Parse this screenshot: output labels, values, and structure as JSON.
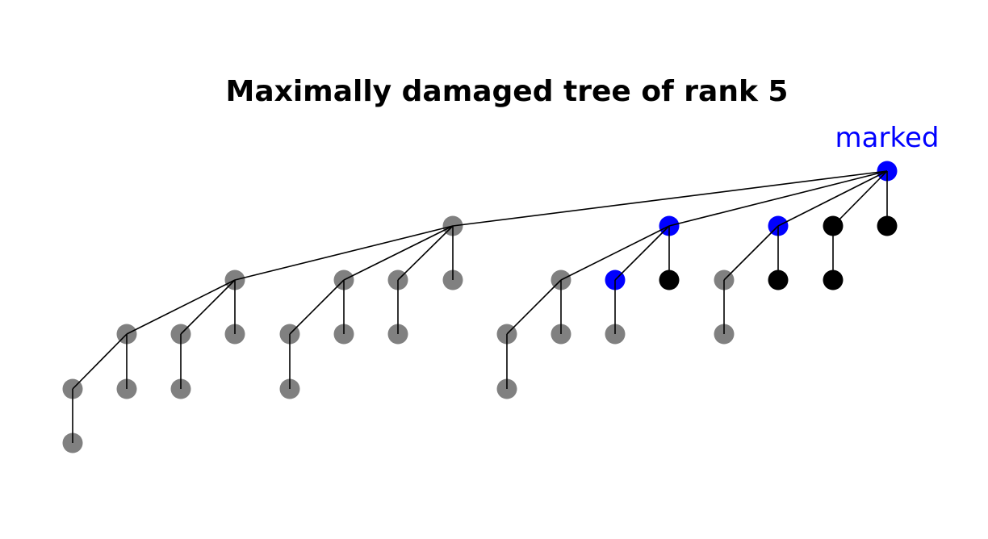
{
  "title": "Maximally damaged tree of rank 5",
  "marked_label": "marked",
  "colors": {
    "gray": "#808080",
    "blue": "#0000ff",
    "black": "#000000",
    "edge": "#000000"
  },
  "nodes": [
    {
      "id": "r",
      "color": "blue"
    },
    {
      "id": "a",
      "color": "gray"
    },
    {
      "id": "b",
      "color": "blue"
    },
    {
      "id": "c",
      "color": "blue"
    },
    {
      "id": "d",
      "color": "black"
    },
    {
      "id": "e",
      "color": "black"
    },
    {
      "id": "a1",
      "color": "gray"
    },
    {
      "id": "a2",
      "color": "gray"
    },
    {
      "id": "a3",
      "color": "gray"
    },
    {
      "id": "a4",
      "color": "gray"
    },
    {
      "id": "b1",
      "color": "gray"
    },
    {
      "id": "b2",
      "color": "blue"
    },
    {
      "id": "b3",
      "color": "black"
    },
    {
      "id": "c1",
      "color": "gray"
    },
    {
      "id": "c2",
      "color": "black"
    },
    {
      "id": "d1",
      "color": "black"
    },
    {
      "id": "a11",
      "color": "gray"
    },
    {
      "id": "a12",
      "color": "gray"
    },
    {
      "id": "a13",
      "color": "gray"
    },
    {
      "id": "a21",
      "color": "gray"
    },
    {
      "id": "a22",
      "color": "gray"
    },
    {
      "id": "a31",
      "color": "gray"
    },
    {
      "id": "b11",
      "color": "gray"
    },
    {
      "id": "b12",
      "color": "gray"
    },
    {
      "id": "b21",
      "color": "gray"
    },
    {
      "id": "c11",
      "color": "gray"
    },
    {
      "id": "a111",
      "color": "gray"
    },
    {
      "id": "a112",
      "color": "gray"
    },
    {
      "id": "a121",
      "color": "gray"
    },
    {
      "id": "a211",
      "color": "gray"
    },
    {
      "id": "b111",
      "color": "gray"
    },
    {
      "id": "a1111",
      "color": "gray"
    }
  ],
  "edges": [
    [
      "r",
      "a"
    ],
    [
      "r",
      "b"
    ],
    [
      "r",
      "c"
    ],
    [
      "r",
      "d"
    ],
    [
      "r",
      "e"
    ],
    [
      "a",
      "a1"
    ],
    [
      "a",
      "a2"
    ],
    [
      "a",
      "a3"
    ],
    [
      "a",
      "a4"
    ],
    [
      "b",
      "b1"
    ],
    [
      "b",
      "b2"
    ],
    [
      "b",
      "b3"
    ],
    [
      "c",
      "c1"
    ],
    [
      "c",
      "c2"
    ],
    [
      "d",
      "d1"
    ],
    [
      "a1",
      "a11"
    ],
    [
      "a1",
      "a12"
    ],
    [
      "a1",
      "a13"
    ],
    [
      "a2",
      "a21"
    ],
    [
      "a2",
      "a22"
    ],
    [
      "a3",
      "a31"
    ],
    [
      "b1",
      "b11"
    ],
    [
      "b1",
      "b12"
    ],
    [
      "b2",
      "b21"
    ],
    [
      "c1",
      "c11"
    ],
    [
      "a11",
      "a111"
    ],
    [
      "a11",
      "a112"
    ],
    [
      "a12",
      "a121"
    ],
    [
      "a21",
      "a211"
    ],
    [
      "b11",
      "b111"
    ],
    [
      "a111",
      "a1111"
    ]
  ]
}
